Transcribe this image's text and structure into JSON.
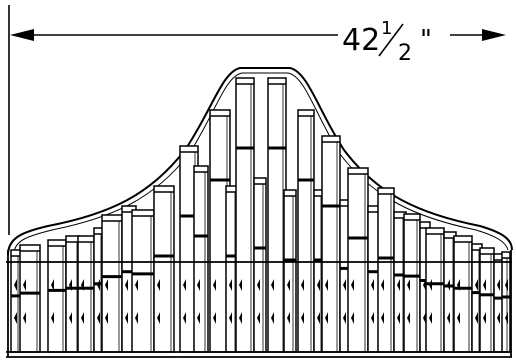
{
  "dimension": {
    "whole": "42",
    "numerator": "1",
    "denominator": "2",
    "unit": "\""
  }
}
